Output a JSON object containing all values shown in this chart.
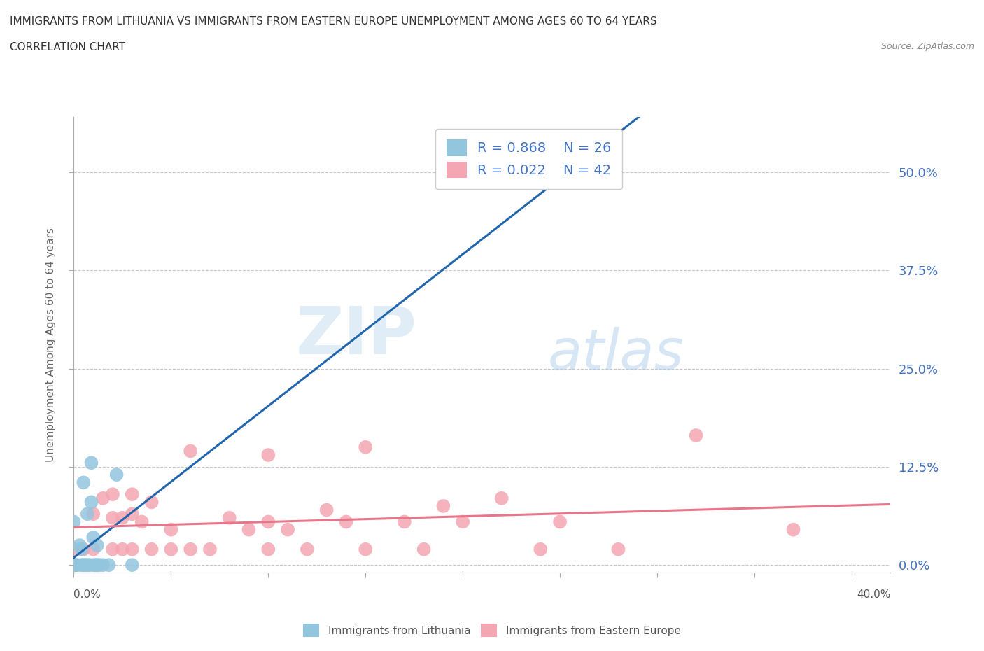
{
  "title_line1": "IMMIGRANTS FROM LITHUANIA VS IMMIGRANTS FROM EASTERN EUROPE UNEMPLOYMENT AMONG AGES 60 TO 64 YEARS",
  "title_line2": "CORRELATION CHART",
  "source_text": "Source: ZipAtlas.com",
  "ylabel": "Unemployment Among Ages 60 to 64 years",
  "xlim": [
    0.0,
    0.42
  ],
  "ylim": [
    -0.01,
    0.57
  ],
  "yticks": [
    0.0,
    0.125,
    0.25,
    0.375,
    0.5
  ],
  "ytick_labels_right": [
    "0.0%",
    "12.5%",
    "25.0%",
    "37.5%",
    "50.0%"
  ],
  "xtick_labels_outer": [
    "0.0%",
    "40.0%"
  ],
  "xtick_pos_outer": [
    0.0,
    0.4
  ],
  "legend_label1": "R = 0.868    N = 26",
  "legend_label2": "R = 0.022    N = 42",
  "blue_color": "#92c5de",
  "pink_color": "#f4a6b2",
  "blue_line_color": "#2166ac",
  "pink_line_color": "#e8768a",
  "watermark_zip": "ZIP",
  "watermark_atlas": "atlas",
  "blue_points_x": [
    0.0,
    0.0,
    0.001,
    0.002,
    0.003,
    0.004,
    0.004,
    0.005,
    0.005,
    0.006,
    0.007,
    0.007,
    0.008,
    0.009,
    0.009,
    0.01,
    0.01,
    0.011,
    0.012,
    0.012,
    0.013,
    0.015,
    0.018,
    0.022,
    0.03,
    0.25
  ],
  "blue_points_y": [
    0.0,
    0.055,
    0.0,
    0.0,
    0.025,
    0.0,
    0.02,
    0.0,
    0.105,
    0.0,
    0.0,
    0.065,
    0.0,
    0.13,
    0.08,
    0.0,
    0.035,
    0.0,
    0.0,
    0.025,
    0.0,
    0.0,
    0.0,
    0.115,
    0.0,
    0.5
  ],
  "pink_points_x": [
    0.0,
    0.005,
    0.01,
    0.01,
    0.015,
    0.02,
    0.02,
    0.02,
    0.025,
    0.025,
    0.03,
    0.03,
    0.03,
    0.035,
    0.04,
    0.04,
    0.05,
    0.05,
    0.06,
    0.06,
    0.07,
    0.08,
    0.09,
    0.1,
    0.1,
    0.1,
    0.11,
    0.12,
    0.13,
    0.14,
    0.15,
    0.15,
    0.17,
    0.18,
    0.19,
    0.2,
    0.22,
    0.24,
    0.25,
    0.28,
    0.32,
    0.37
  ],
  "pink_points_y": [
    0.02,
    0.02,
    0.02,
    0.065,
    0.085,
    0.02,
    0.06,
    0.09,
    0.02,
    0.06,
    0.02,
    0.065,
    0.09,
    0.055,
    0.02,
    0.08,
    0.02,
    0.045,
    0.02,
    0.145,
    0.02,
    0.06,
    0.045,
    0.02,
    0.055,
    0.14,
    0.045,
    0.02,
    0.07,
    0.055,
    0.02,
    0.15,
    0.055,
    0.02,
    0.075,
    0.055,
    0.085,
    0.02,
    0.055,
    0.02,
    0.165,
    0.045
  ],
  "background_color": "#ffffff",
  "grid_color": "#c8c8c8",
  "tick_color": "#aaaaaa",
  "blue_label": "Immigrants from Lithuania",
  "pink_label": "Immigrants from Eastern Europe"
}
